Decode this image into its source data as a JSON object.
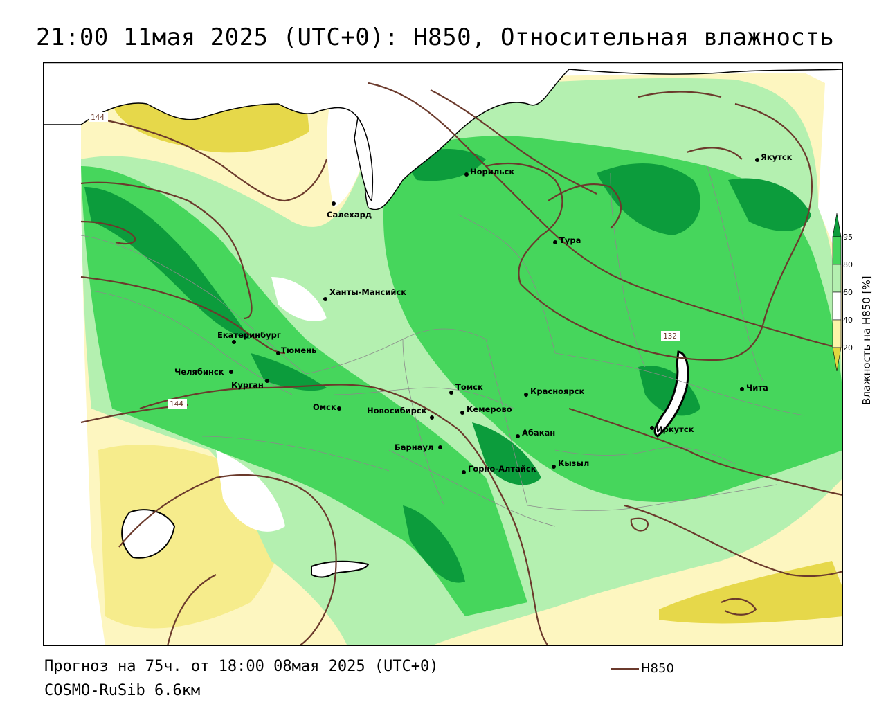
{
  "title": "21:00 11мая 2025 (UTC+0): H850, Относительная влажность",
  "footer": {
    "forecast": "Прогноз на 75ч. от 18:00 08мая 2025 (UTC+0)",
    "model": "COSMO-RuSib 6.6км"
  },
  "legend": {
    "line_label": "H850",
    "line_color": "#6b3a2c"
  },
  "colorbar": {
    "title": "Влажность на H850 [%]",
    "ticks": [
      "20",
      "40",
      "60",
      "80",
      "95"
    ],
    "colors": [
      "#e0d640",
      "#fcf3a8",
      "#ffffff",
      "#b4f0b0",
      "#46d65c",
      "#0c9c3c"
    ]
  },
  "contour_labels": [
    "144",
    "144",
    "132"
  ],
  "cities": [
    {
      "name": "Салехард"
    },
    {
      "name": "Норильск"
    },
    {
      "name": "Якутск"
    },
    {
      "name": "Тура"
    },
    {
      "name": "Ханты-Мансийск"
    },
    {
      "name": "Екатеринбург"
    },
    {
      "name": "Тюмень"
    },
    {
      "name": "Челябинск"
    },
    {
      "name": "Курган"
    },
    {
      "name": "Омск"
    },
    {
      "name": "Новосибирск"
    },
    {
      "name": "Томск"
    },
    {
      "name": "Кемерово"
    },
    {
      "name": "Красноярск"
    },
    {
      "name": "Барнаул"
    },
    {
      "name": "Абакан"
    },
    {
      "name": "Горно-Алтайск"
    },
    {
      "name": "Кызыл"
    },
    {
      "name": "Иркутск"
    },
    {
      "name": "Чита"
    }
  ]
}
